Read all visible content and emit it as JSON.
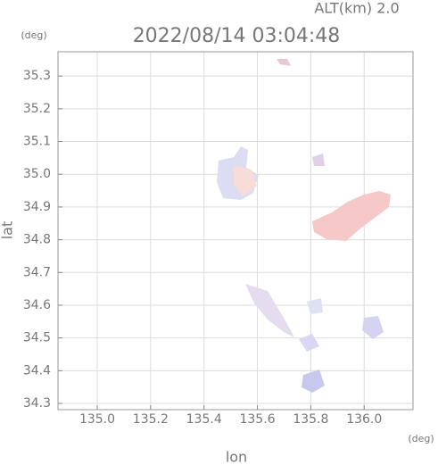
{
  "chart_data": {
    "type": "map",
    "title": "2022/08/14 03:04:48",
    "subtitle": "ALT(km) 2.0",
    "x_label": "lon",
    "y_label": "lat",
    "x_unit": "(deg)",
    "y_unit": "(deg)",
    "xlim": [
      134.853,
      136.183
    ],
    "ylim": [
      34.281,
      35.374
    ],
    "xticks": [
      {
        "value": 135.0,
        "label": "135.0"
      },
      {
        "value": 135.2,
        "label": "135.2"
      },
      {
        "value": 135.4,
        "label": "135.4"
      },
      {
        "value": 135.6,
        "label": "135.6"
      },
      {
        "value": 135.8,
        "label": "135.8"
      },
      {
        "value": 136.0,
        "label": "136.0"
      }
    ],
    "yticks": [
      {
        "value": 34.3,
        "label": "34.3"
      },
      34.4,
      34.5,
      34.6,
      34.7,
      34.8,
      34.9,
      {
        "value": 35.0,
        "label": "35.0"
      },
      35.1,
      35.2,
      35.3
    ],
    "grid": true
  }
}
